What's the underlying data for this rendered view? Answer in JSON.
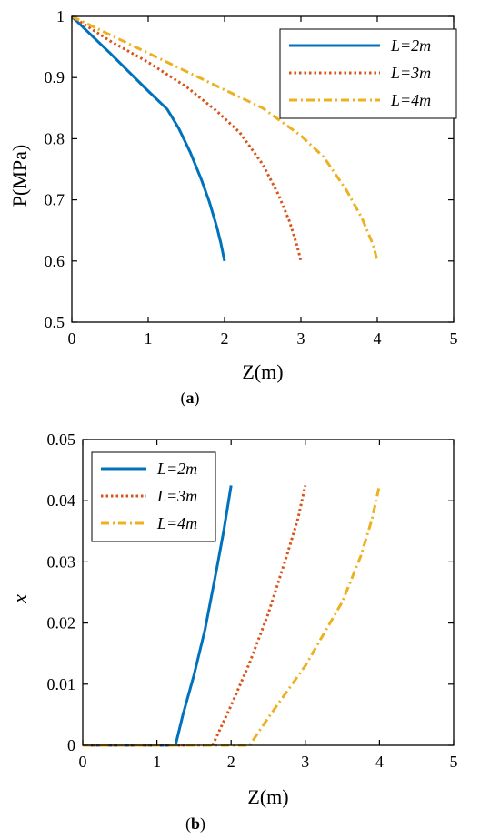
{
  "chart_data": [
    {
      "type": "line",
      "panel_label": "(a)",
      "xlabel": "Z(m)",
      "ylabel": "P(MPa)",
      "xlim": [
        0,
        5
      ],
      "ylim": [
        0.5,
        1
      ],
      "xticks": [
        "0",
        "1",
        "2",
        "3",
        "4",
        "5"
      ],
      "yticks": [
        "0.5",
        "0.6",
        "0.7",
        "0.8",
        "0.9",
        "1"
      ],
      "grid": false,
      "legend_position": "top-right",
      "series": [
        {
          "name": "L=2m",
          "color": "#0072BD",
          "style": "solid",
          "x": [
            0,
            0.25,
            0.5,
            0.75,
            1.0,
            1.25,
            1.4,
            1.55,
            1.7,
            1.8,
            1.9,
            1.95,
            2.0
          ],
          "y": [
            1.0,
            0.97,
            0.94,
            0.909,
            0.878,
            0.848,
            0.817,
            0.778,
            0.732,
            0.697,
            0.655,
            0.63,
            0.6
          ]
        },
        {
          "name": "L=3m",
          "color": "#D95319",
          "style": "dotted",
          "x": [
            0,
            0.5,
            1.0,
            1.5,
            1.9,
            2.2,
            2.5,
            2.7,
            2.85,
            2.95,
            3.0
          ],
          "y": [
            1.0,
            0.96,
            0.925,
            0.885,
            0.845,
            0.81,
            0.758,
            0.71,
            0.665,
            0.625,
            0.6
          ]
        },
        {
          "name": "L=4m",
          "color": "#EDB120",
          "style": "dashdot",
          "x": [
            0,
            0.5,
            1.0,
            1.5,
            2.0,
            2.5,
            3.0,
            3.3,
            3.6,
            3.8,
            3.95,
            4.0
          ],
          "y": [
            1.0,
            0.97,
            0.94,
            0.91,
            0.88,
            0.85,
            0.805,
            0.77,
            0.715,
            0.67,
            0.625,
            0.6
          ]
        }
      ]
    },
    {
      "type": "line",
      "panel_label": "(b)",
      "xlabel": "Z(m)",
      "ylabel": "x",
      "xlim": [
        0,
        5
      ],
      "ylim": [
        0,
        0.05
      ],
      "xticks": [
        "0",
        "1",
        "2",
        "3",
        "4",
        "5"
      ],
      "yticks": [
        "0",
        "0.01",
        "0.02",
        "0.03",
        "0.04",
        "0.05"
      ],
      "grid": false,
      "legend_position": "top-left",
      "series": [
        {
          "name": "L=2m",
          "color": "#0072BD",
          "style": "solid",
          "x": [
            0,
            1.25,
            1.35,
            1.5,
            1.65,
            1.8,
            1.9,
            2.0
          ],
          "y": [
            0,
            0,
            0.005,
            0.0115,
            0.019,
            0.0285,
            0.035,
            0.0425
          ]
        },
        {
          "name": "L=3m",
          "color": "#D95319",
          "style": "dotted",
          "x": [
            0,
            1.75,
            2.0,
            2.25,
            2.5,
            2.75,
            2.9,
            3.0
          ],
          "y": [
            0,
            0,
            0.0065,
            0.0135,
            0.0215,
            0.031,
            0.037,
            0.0425
          ]
        },
        {
          "name": "L=4m",
          "color": "#EDB120",
          "style": "dashdot",
          "x": [
            0,
            2.25,
            2.5,
            3.0,
            3.5,
            3.75,
            3.9,
            4.0
          ],
          "y": [
            0,
            0,
            0.0045,
            0.013,
            0.0235,
            0.031,
            0.037,
            0.0425
          ]
        }
      ]
    }
  ]
}
